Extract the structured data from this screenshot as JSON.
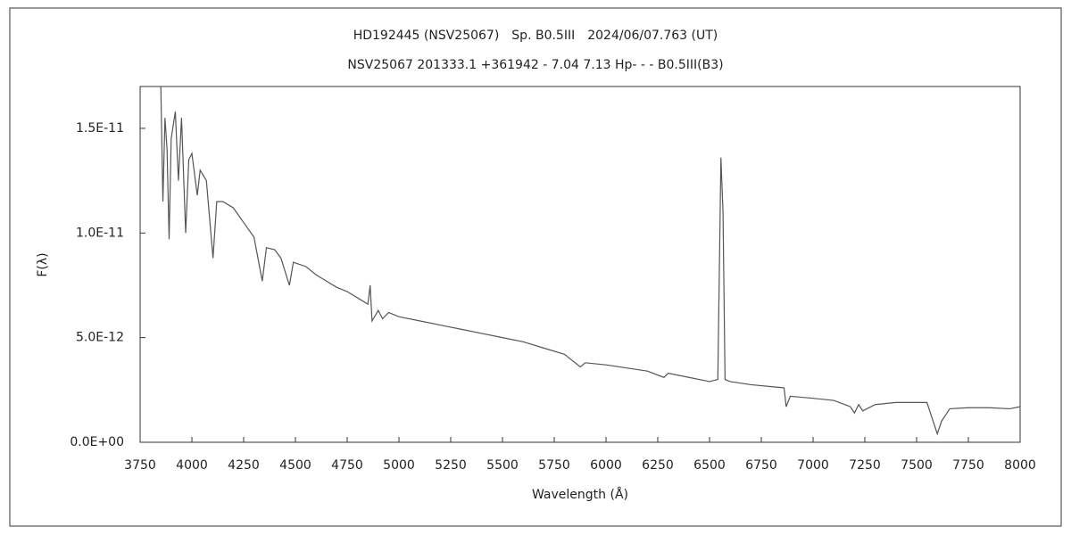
{
  "chart_data": {
    "type": "line",
    "title": "HD192445 (NSV25067)　Sp. B0.5III　2024/06/07.763 (UT)",
    "subtitle": "NSV25067 201333.1 +361942 - 7.04 7.13 Hp- - - B0.5III(B3)",
    "xlabel": "Wavelength (Å)",
    "ylabel": "F(λ)",
    "color": "#555555",
    "xlim": [
      3750,
      8000
    ],
    "xticks": [
      3750,
      4000,
      4250,
      4500,
      4750,
      5000,
      5250,
      5500,
      5750,
      6000,
      6250,
      6500,
      6750,
      7000,
      7250,
      7500,
      7750,
      8000
    ],
    "ylim": [
      0,
      1.7e-11
    ],
    "yticks": [
      {
        "value": 0,
        "label": "0.0E+00"
      },
      {
        "value": 5e-12,
        "label": "5.0E-12"
      },
      {
        "value": 1e-11,
        "label": "1.0E-11"
      },
      {
        "value": 1.5e-11,
        "label": "1.5E-11"
      }
    ],
    "x": [
      3850,
      3860,
      3870,
      3880,
      3890,
      3900,
      3920,
      3935,
      3950,
      3970,
      3985,
      4000,
      4026,
      4040,
      4070,
      4102,
      4120,
      4150,
      4200,
      4250,
      4300,
      4340,
      4360,
      4400,
      4430,
      4471,
      4490,
      4550,
      4600,
      4650,
      4700,
      4750,
      4800,
      4850,
      4861,
      4870,
      4900,
      4921,
      4950,
      5000,
      5100,
      5200,
      5300,
      5400,
      5500,
      5600,
      5700,
      5800,
      5876,
      5900,
      6000,
      6100,
      6200,
      6280,
      6300,
      6400,
      6500,
      6540,
      6555,
      6565,
      6575,
      6600,
      6700,
      6860,
      6870,
      6890,
      7000,
      7100,
      7180,
      7200,
      7220,
      7240,
      7300,
      7400,
      7550,
      7600,
      7620,
      7660,
      7750,
      7850,
      7950,
      8000
    ],
    "values": [
      1.7e-11,
      1.15e-11,
      1.55e-11,
      1.4e-11,
      9.7e-12,
      1.45e-11,
      1.58e-11,
      1.25e-11,
      1.55e-11,
      1e-11,
      1.35e-11,
      1.38e-11,
      1.18e-11,
      1.3e-11,
      1.25e-11,
      8.8e-12,
      1.15e-11,
      1.15e-11,
      1.12e-11,
      1.05e-11,
      9.8e-12,
      7.7e-12,
      9.3e-12,
      9.2e-12,
      8.8e-12,
      7.5e-12,
      8.6e-12,
      8.4e-12,
      8e-12,
      7.7e-12,
      7.4e-12,
      7.2e-12,
      6.9e-12,
      6.6e-12,
      7.5e-12,
      5.8e-12,
      6.3e-12,
      5.9e-12,
      6.2e-12,
      6e-12,
      5.8e-12,
      5.6e-12,
      5.4e-12,
      5.2e-12,
      5e-12,
      4.8e-12,
      4.5e-12,
      4.2e-12,
      3.6e-12,
      3.8e-12,
      3.7e-12,
      3.55e-12,
      3.4e-12,
      3.1e-12,
      3.3e-12,
      3.1e-12,
      2.9e-12,
      3e-12,
      1.36e-11,
      1.1e-11,
      3e-12,
      2.9e-12,
      2.75e-12,
      2.6e-12,
      1.7e-12,
      2.2e-12,
      2.1e-12,
      2e-12,
      1.7e-12,
      1.4e-12,
      1.8e-12,
      1.5e-12,
      1.8e-12,
      1.9e-12,
      1.9e-12,
      4e-13,
      1e-12,
      1.6e-12,
      1.65e-12,
      1.65e-12,
      1.6e-12,
      1.7e-12
    ]
  }
}
